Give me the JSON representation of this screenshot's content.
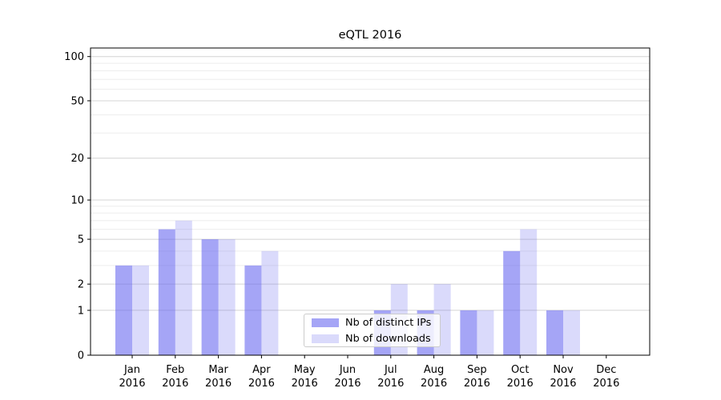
{
  "chart_data": {
    "type": "bar",
    "title": "eQTL 2016",
    "xlabel": "",
    "ylabel": "",
    "year_label": "2016",
    "categories": [
      "Jan",
      "Feb",
      "Mar",
      "Apr",
      "May",
      "Jun",
      "Jul",
      "Aug",
      "Sep",
      "Oct",
      "Nov",
      "Dec"
    ],
    "series": [
      {
        "name": "Nb of distinct IPs",
        "color": "#6464f0",
        "alpha": 0.58,
        "values": [
          3,
          6,
          5,
          3,
          0,
          0,
          1,
          1,
          1,
          4,
          1,
          0
        ]
      },
      {
        "name": "Nb of downloads",
        "color": "#6464f0",
        "alpha": 0.24,
        "values": [
          3,
          7,
          5,
          4,
          0,
          0,
          2,
          2,
          1,
          6,
          1,
          0
        ]
      }
    ],
    "yscale": "log1p",
    "ylim": [
      0,
      114
    ],
    "yticks": [
      0,
      1,
      2,
      5,
      10,
      20,
      50,
      100
    ],
    "minor_gridlines": [
      3,
      4,
      6,
      7,
      8,
      9,
      30,
      40,
      60,
      70,
      80,
      90
    ],
    "grid": "on",
    "legend_position": "lower-center",
    "colors": {
      "bar_dark_on_white": "#a9a9f3",
      "bar_light_on_white": "#dbdbf7",
      "major_gridline": "#d4d4d4",
      "minor_gridline": "#ededed",
      "axis": "#000000",
      "text": "#000000"
    }
  }
}
